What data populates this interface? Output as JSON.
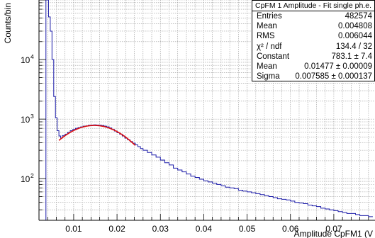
{
  "chart_data": {
    "type": "histogram",
    "xlabel": "Amplitude CpFM1 (V",
    "ylabel": "Counts/bin",
    "xlim": [
      0.002,
      0.0795
    ],
    "ylim": [
      20,
      100000
    ],
    "log_y": true,
    "grid": true,
    "x_ticks": [
      {
        "value": 0.01,
        "label": "0.01"
      },
      {
        "value": 0.02,
        "label": "0.02"
      },
      {
        "value": 0.03,
        "label": "0.03"
      },
      {
        "value": 0.04,
        "label": "0.04"
      },
      {
        "value": 0.05,
        "label": "0.05"
      },
      {
        "value": 0.06,
        "label": "0.06"
      },
      {
        "value": 0.07,
        "label": "0.07"
      }
    ],
    "y_ticks": [
      {
        "value": 100,
        "label": "10",
        "exp": "2"
      },
      {
        "value": 1000,
        "label": "10",
        "exp": "3"
      },
      {
        "value": 10000,
        "label": "10",
        "exp": "4"
      }
    ],
    "histogram": {
      "color": "#1a1aa8",
      "points": [
        [
          0.0035,
          20
        ],
        [
          0.0036,
          100000
        ],
        [
          0.004,
          100000
        ],
        [
          0.0042,
          52000
        ],
        [
          0.0046,
          30000
        ],
        [
          0.005,
          10000
        ],
        [
          0.0054,
          2400
        ],
        [
          0.0058,
          1050
        ],
        [
          0.0062,
          640
        ],
        [
          0.0066,
          520
        ],
        [
          0.007,
          480
        ],
        [
          0.0074,
          530
        ],
        [
          0.008,
          560
        ],
        [
          0.0086,
          600
        ],
        [
          0.0092,
          640
        ],
        [
          0.0098,
          670
        ],
        [
          0.0104,
          700
        ],
        [
          0.011,
          720
        ],
        [
          0.0116,
          740
        ],
        [
          0.0122,
          760
        ],
        [
          0.0128,
          770
        ],
        [
          0.0134,
          790
        ],
        [
          0.014,
          795
        ],
        [
          0.0146,
          800
        ],
        [
          0.0152,
          795
        ],
        [
          0.0158,
          790
        ],
        [
          0.0164,
          780
        ],
        [
          0.017,
          760
        ],
        [
          0.0176,
          740
        ],
        [
          0.0182,
          710
        ],
        [
          0.0188,
          670
        ],
        [
          0.0194,
          630
        ],
        [
          0.02,
          590
        ],
        [
          0.0206,
          560
        ],
        [
          0.0212,
          520
        ],
        [
          0.0218,
          480
        ],
        [
          0.0224,
          450
        ],
        [
          0.023,
          420
        ],
        [
          0.0236,
          395
        ],
        [
          0.0242,
          370
        ],
        [
          0.0248,
          345
        ],
        [
          0.0254,
          320
        ],
        [
          0.026,
          300
        ],
        [
          0.027,
          275
        ],
        [
          0.028,
          250
        ],
        [
          0.029,
          230
        ],
        [
          0.03,
          205
        ],
        [
          0.031,
          185
        ],
        [
          0.032,
          170
        ],
        [
          0.033,
          150
        ],
        [
          0.034,
          140
        ],
        [
          0.035,
          130
        ],
        [
          0.036,
          120
        ],
        [
          0.037,
          110
        ],
        [
          0.038,
          105
        ],
        [
          0.039,
          98
        ],
        [
          0.04,
          92
        ],
        [
          0.041,
          88
        ],
        [
          0.042,
          84
        ],
        [
          0.043,
          80
        ],
        [
          0.044,
          76
        ],
        [
          0.045,
          72
        ],
        [
          0.046,
          70
        ],
        [
          0.047,
          68
        ],
        [
          0.048,
          64
        ],
        [
          0.049,
          62
        ],
        [
          0.05,
          60
        ],
        [
          0.051,
          58
        ],
        [
          0.052,
          56
        ],
        [
          0.053,
          54
        ],
        [
          0.054,
          52
        ],
        [
          0.055,
          50
        ],
        [
          0.056,
          48
        ],
        [
          0.057,
          46
        ],
        [
          0.058,
          45
        ],
        [
          0.059,
          44
        ],
        [
          0.06,
          42
        ],
        [
          0.061,
          40
        ],
        [
          0.062,
          39
        ],
        [
          0.063,
          38
        ],
        [
          0.064,
          36
        ],
        [
          0.065,
          35
        ],
        [
          0.066,
          34
        ],
        [
          0.067,
          32
        ],
        [
          0.068,
          31
        ],
        [
          0.069,
          30
        ],
        [
          0.07,
          29
        ],
        [
          0.071,
          28
        ],
        [
          0.072,
          27
        ],
        [
          0.073,
          26
        ],
        [
          0.074,
          26
        ],
        [
          0.075,
          25
        ],
        [
          0.076,
          24
        ],
        [
          0.077,
          24
        ],
        [
          0.078,
          23
        ],
        [
          0.079,
          23
        ]
      ]
    },
    "fit": {
      "type": "gaussian",
      "color": "#dd1111",
      "constant": 783.1,
      "mean": 0.01477,
      "sigma": 0.007585,
      "range": [
        0.0066,
        0.0242
      ]
    }
  },
  "stats_box": {
    "title": "CpFM 1 Amplitude - Fit single ph.e.",
    "rows": [
      {
        "key": "Entries",
        "value": "482574"
      },
      {
        "key": "Mean",
        "value": "0.004808"
      },
      {
        "key": "RMS",
        "value": "0.006044"
      },
      {
        "key": "χ² / ndf",
        "value": "134.4 / 32"
      },
      {
        "key": "Constant",
        "value": "783.1 ± 7.4"
      },
      {
        "key": "Mean",
        "value": "0.01477 ± 0.00009"
      },
      {
        "key": "Sigma",
        "value": "0.007585 ± 0.000137"
      }
    ]
  }
}
